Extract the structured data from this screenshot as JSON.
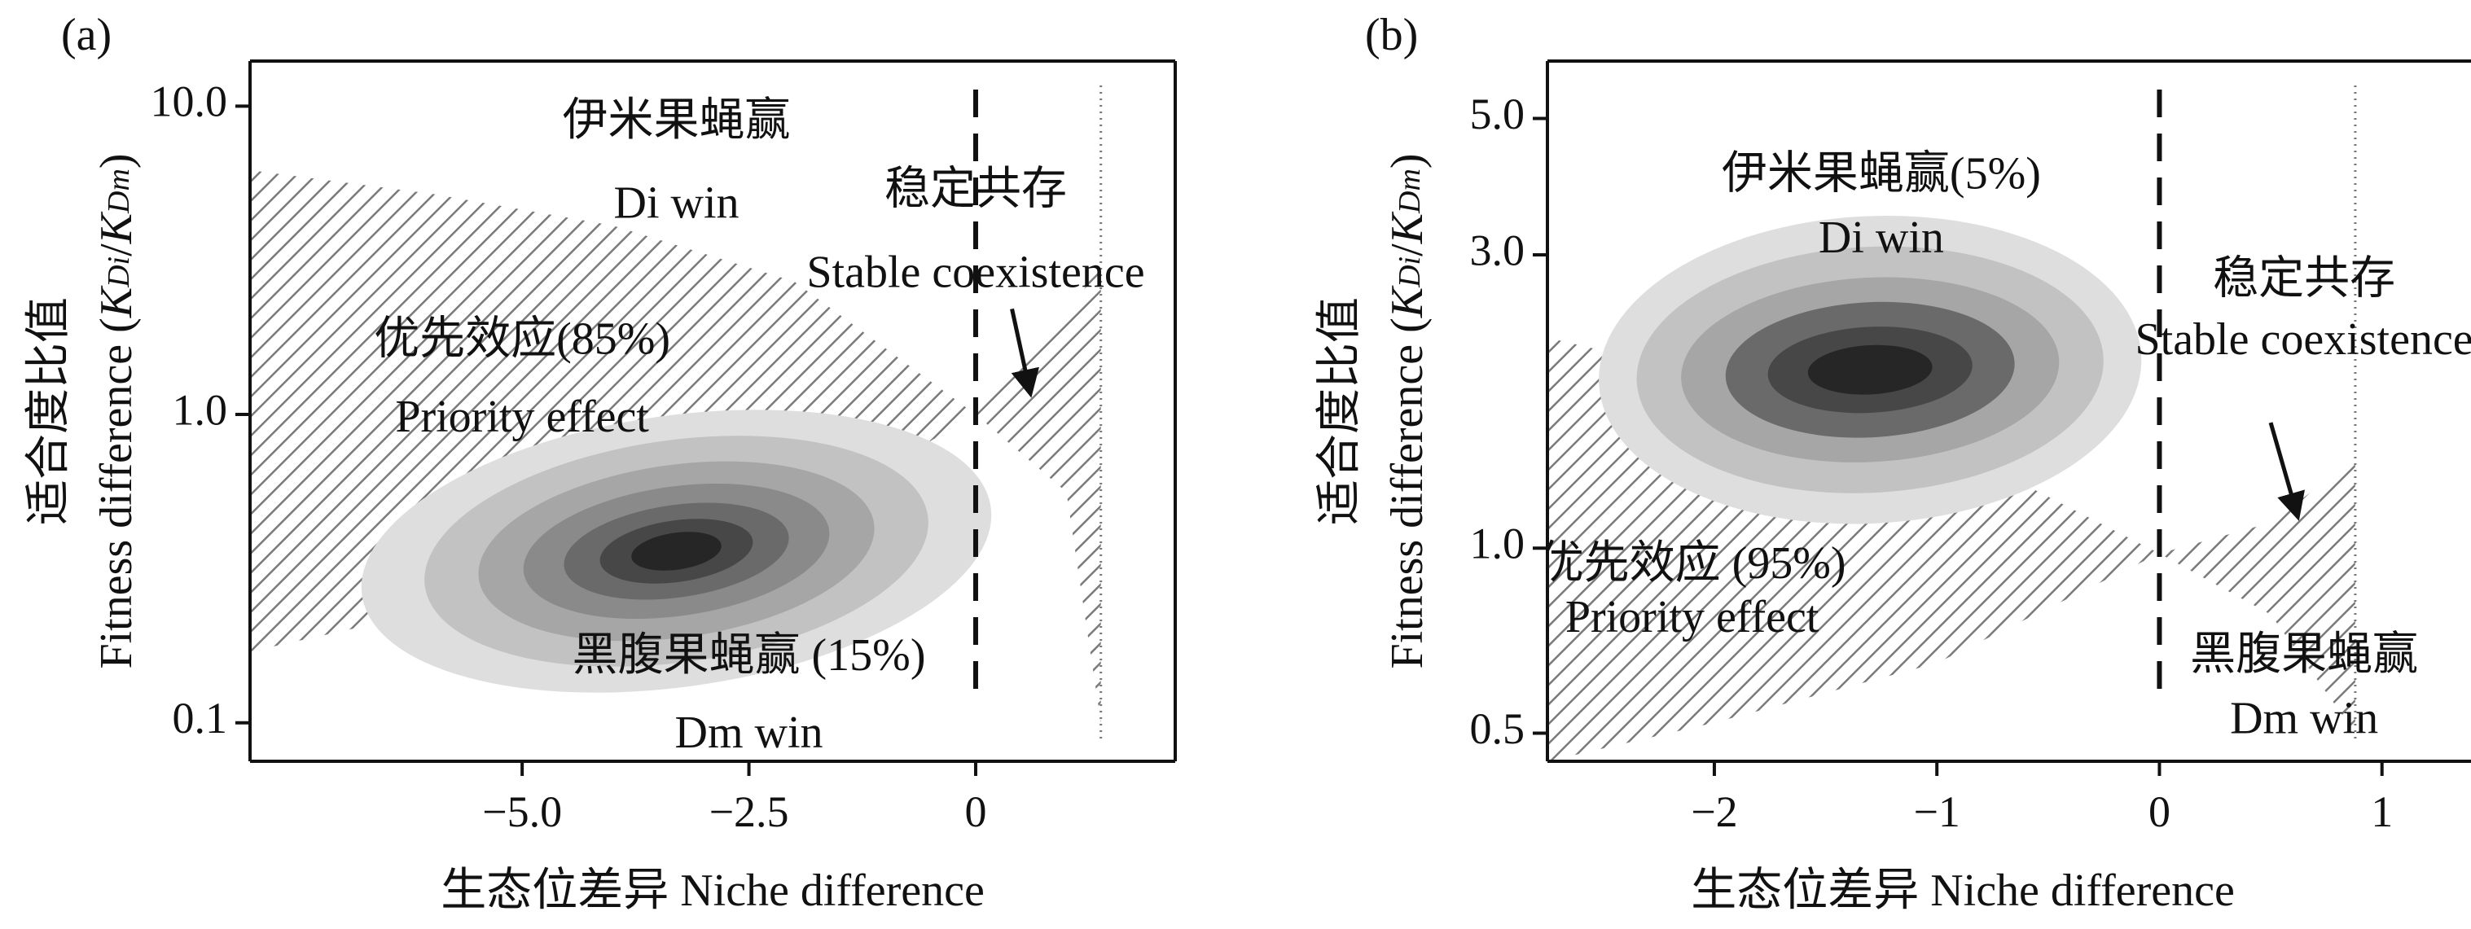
{
  "colors": {
    "axis": "#111111",
    "hatch": "#7a7a7a",
    "density_levels": [
      "#dedede",
      "#c2c2c2",
      "#a6a6a6",
      "#8a8a8a",
      "#6a6a6a",
      "#474747",
      "#262626"
    ]
  },
  "chart_data": [
    {
      "panel_label": "(a)",
      "type": "contour",
      "xlabel": "生态位差异 Niche difference",
      "ylabel_cn": "适合度比值",
      "ylabel_en": "Fitness difference",
      "ylabel_math": {
        "open": "(",
        "K": "K",
        "sub1": "Di",
        "slash": "/",
        "sub2": "Dm",
        "close": ")"
      },
      "xlim": [
        -8.0,
        2.2
      ],
      "ylim": [
        0.075,
        14.0
      ],
      "yscale": "log",
      "xticks": [
        {
          "value": -5.0,
          "label": "−5.0"
        },
        {
          "value": -2.5,
          "label": "−2.5"
        },
        {
          "value": 0,
          "label": "0"
        }
      ],
      "yticks": [
        {
          "value": 10.0,
          "label": "10.0"
        },
        {
          "value": 1.0,
          "label": "1.0"
        },
        {
          "value": 0.1,
          "label": "0.1"
        }
      ],
      "dashed_line_x": 0,
      "dotted_line_x": 1.38,
      "hatch_region": {
        "x": [
          -8.0,
          -6.0,
          -4.0,
          -2.0,
          0.0,
          1.0,
          1.38
        ],
        "upper": [
          6.2,
          5.2,
          4.1,
          2.7,
          1.0,
          2.0,
          3.2
        ],
        "lower": [
          0.17,
          0.23,
          0.31,
          0.45,
          1.0,
          0.56,
          0.1
        ]
      },
      "density": {
        "center": [
          -3.3,
          0.36
        ],
        "levels": [
          {
            "rx": 3.5,
            "ry_log": 0.44
          },
          {
            "rx": 2.8,
            "ry_log": 0.36
          },
          {
            "rx": 2.2,
            "ry_log": 0.28
          },
          {
            "rx": 1.7,
            "ry_log": 0.21
          },
          {
            "rx": 1.25,
            "ry_log": 0.15
          },
          {
            "rx": 0.85,
            "ry_log": 0.1
          },
          {
            "rx": 0.5,
            "ry_log": 0.06
          }
        ]
      },
      "annotations": [
        {
          "text": "伊米果蝇赢",
          "x": -3.3,
          "y": 8.7
        },
        {
          "text": "Di win",
          "x": -3.3,
          "y": 4.7
        },
        {
          "text": "稳定共存",
          "x": 0.0,
          "y": 5.2
        },
        {
          "text": "Stable coexistence",
          "x": 0.0,
          "y": 2.8
        },
        {
          "text": "优先效应(85%)",
          "x": -5.0,
          "y": 1.7
        },
        {
          "text": "Priority effect",
          "x": -5.0,
          "y": 0.95
        },
        {
          "text": "黑腹果蝇赢 (15%)",
          "x": -2.5,
          "y": 0.16
        },
        {
          "text": "Dm win",
          "x": -2.5,
          "y": 0.09
        }
      ],
      "arrow": {
        "from": [
          0.4,
          2.2
        ],
        "to": [
          0.6,
          1.18
        ]
      }
    },
    {
      "panel_label": "(b)",
      "type": "contour",
      "xlabel": "生态位差异 Niche difference",
      "ylabel_cn": "适合度比值",
      "ylabel_en": "Fitness difference",
      "ylabel_math": {
        "open": "(",
        "K": "K",
        "sub1": "Di",
        "slash": "/",
        "sub2": "Dm",
        "close": ")"
      },
      "xlim": [
        -2.75,
        1.4
      ],
      "ylim": [
        0.45,
        6.2
      ],
      "yscale": "log",
      "xticks": [
        {
          "value": -2,
          "label": "−2"
        },
        {
          "value": -1,
          "label": "−1"
        },
        {
          "value": 0,
          "label": "0"
        },
        {
          "value": 1,
          "label": "1"
        }
      ],
      "yticks": [
        {
          "value": 5.0,
          "label": "5.0"
        },
        {
          "value": 3.0,
          "label": "3.0"
        },
        {
          "value": 1.0,
          "label": "1.0"
        },
        {
          "value": 0.5,
          "label": "0.5"
        }
      ],
      "dashed_line_x": 0,
      "dotted_line_x": 0.88,
      "hatch_region": {
        "x": [
          -2.75,
          -2.0,
          -1.0,
          0.0,
          0.5,
          0.88
        ],
        "upper": [
          2.2,
          1.9,
          1.5,
          0.98,
          1.1,
          1.4
        ],
        "lower": [
          0.45,
          0.52,
          0.65,
          0.98,
          0.78,
          0.5
        ]
      },
      "density": {
        "center": [
          -1.3,
          1.95
        ],
        "levels": [
          {
            "rx": 1.22,
            "ry_log": 0.25
          },
          {
            "rx": 1.05,
            "ry_log": 0.2
          },
          {
            "rx": 0.85,
            "ry_log": 0.15
          },
          {
            "rx": 0.65,
            "ry_log": 0.11
          },
          {
            "rx": 0.46,
            "ry_log": 0.07
          },
          {
            "rx": 0.28,
            "ry_log": 0.04
          }
        ]
      },
      "annotations": [
        {
          "text": "伊米果蝇赢(5%)",
          "x": -1.25,
          "y": 4.0
        },
        {
          "text": "Di win",
          "x": -1.25,
          "y": 3.15
        },
        {
          "text": "稳定共存",
          "x": 0.65,
          "y": 2.7
        },
        {
          "text": "Stable coexistence",
          "x": 0.65,
          "y": 2.15
        },
        {
          "text": "优先效应 (95%)",
          "x": -2.1,
          "y": 0.93
        },
        {
          "text": "Priority effect",
          "x": -2.1,
          "y": 0.76
        },
        {
          "text": "黑腹果蝇赢",
          "x": 0.65,
          "y": 0.66
        },
        {
          "text": "Dm win",
          "x": 0.65,
          "y": 0.52
        }
      ],
      "arrow": {
        "from": [
          0.5,
          1.6
        ],
        "to": [
          0.62,
          1.13
        ]
      }
    }
  ]
}
